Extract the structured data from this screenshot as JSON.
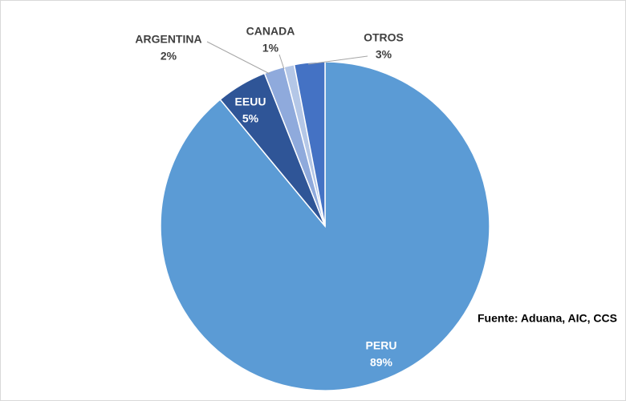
{
  "chart_data": {
    "type": "pie",
    "categories": [
      "PERU",
      "EEUU",
      "ARGENTINA",
      "CANADA",
      "OTROS"
    ],
    "values": [
      89,
      5,
      2,
      1,
      3
    ],
    "value_labels": [
      "89%",
      "5%",
      "2%",
      "1%",
      "3%"
    ],
    "colors": [
      "#5b9bd5",
      "#2f5597",
      "#8faadc",
      "#b4c7e7",
      "#4472c4"
    ],
    "annotation": "Fuente: Aduana, AIC, CCS"
  }
}
